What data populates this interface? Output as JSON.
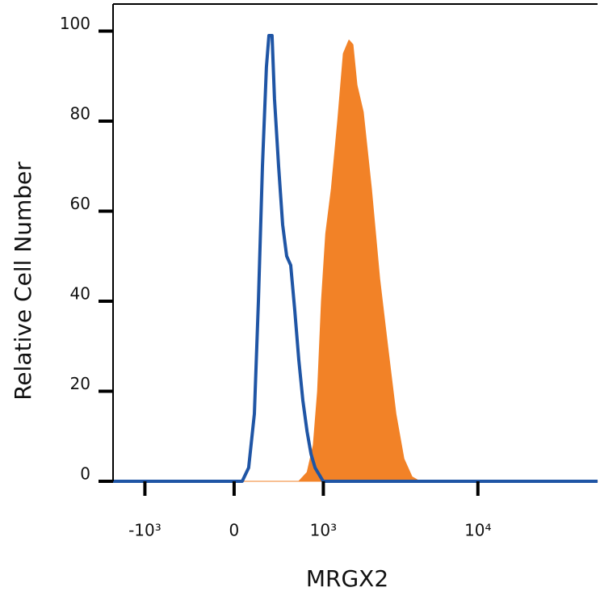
{
  "chart_data": {
    "type": "line",
    "x_label": "MRGX2",
    "y_label": "Relative Cell Number",
    "xscale": "biexponential",
    "xlim": [
      -1660,
      56000
    ],
    "xticks": [
      {
        "value": -1000,
        "label": "-10³"
      },
      0,
      {
        "value": 1000,
        "label": "10³"
      },
      {
        "value": 10000,
        "label": "10⁴"
      }
    ],
    "ylim": [
      0,
      106
    ],
    "yticks": [
      0,
      20,
      40,
      60,
      80,
      100
    ],
    "series": [
      {
        "color": "#f28227",
        "filled": true,
        "x": [
          -1660,
          642,
          752,
          840,
          906,
          968,
          1040,
          1141,
          1263,
          1380,
          1507,
          1604,
          1706,
          1877,
          2122,
          2400,
          2702,
          3050,
          3428,
          3853,
          4334,
          56000
        ],
        "values": [
          0,
          0,
          2,
          8,
          20,
          40,
          55,
          65,
          80,
          95,
          98,
          97,
          88,
          82,
          65,
          45,
          30,
          15,
          5,
          1,
          0,
          0
        ]
      },
      {
        "color": "#1f55a5",
        "filled": false,
        "x": [
          -1660,
          70,
          126,
          177,
          214,
          251,
          289,
          313,
          344,
          368,
          411,
          454,
          498,
          544,
          592,
          642,
          695,
          752,
          808,
          868,
          997,
          56000
        ],
        "values": [
          0,
          0,
          3,
          15,
          40,
          70,
          92,
          99,
          99,
          85,
          70,
          57,
          50,
          48,
          38,
          27,
          18,
          11,
          6,
          3,
          0,
          0
        ]
      }
    ]
  }
}
